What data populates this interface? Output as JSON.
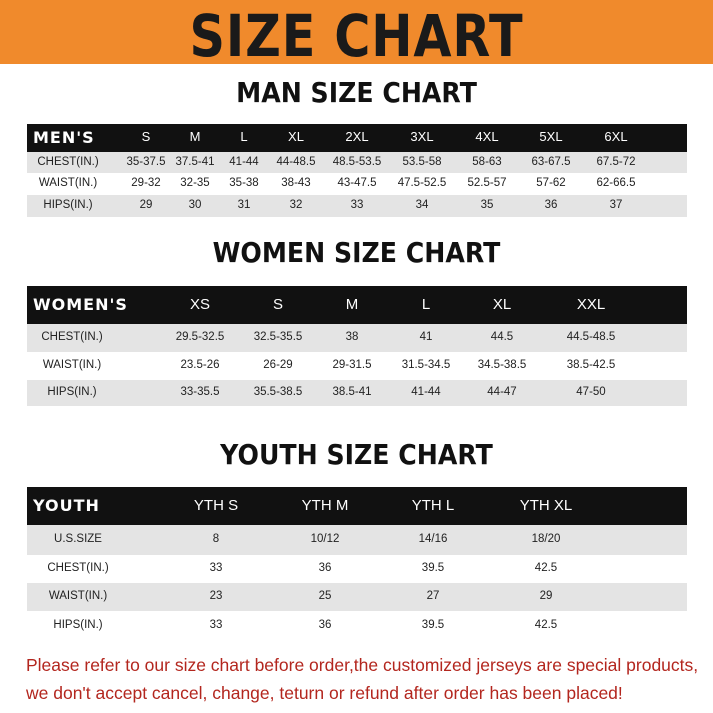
{
  "header": {
    "title": "SIZE CHART"
  },
  "tables": [
    {
      "title": "MAN SIZE CHART",
      "columns": [
        "MEN'S",
        "S",
        "M",
        "L",
        "XL",
        "2XL",
        "3XL",
        "4XL",
        "5XL",
        "6XL"
      ],
      "rows": [
        [
          "CHEST(IN.)",
          "35-37.5",
          "37.5-41",
          "41-44",
          "44-48.5",
          "48.5-53.5",
          "53.5-58",
          "58-63",
          "63-67.5",
          "67.5-72"
        ],
        [
          "WAIST(IN.)",
          "29-32",
          "32-35",
          "35-38",
          "38-43",
          "43-47.5",
          "47.5-52.5",
          "52.5-57",
          "57-62",
          "62-66.5"
        ],
        [
          "HIPS(IN.)",
          "29",
          "30",
          "31",
          "32",
          "33",
          "34",
          "35",
          "36",
          "37"
        ]
      ]
    },
    {
      "title": "WOMEN SIZE CHART",
      "columns": [
        "WOMEN'S",
        "XS",
        "S",
        "M",
        "L",
        "XL",
        "XXL"
      ],
      "rows": [
        [
          "CHEST(IN.)",
          "29.5-32.5",
          "32.5-35.5",
          "38",
          "41",
          "44.5",
          "44.5-48.5"
        ],
        [
          "WAIST(IN.)",
          "23.5-26",
          "26-29",
          "29-31.5",
          "31.5-34.5",
          "34.5-38.5",
          "38.5-42.5"
        ],
        [
          "HIPS(IN.)",
          "33-35.5",
          "35.5-38.5",
          "38.5-41",
          "41-44",
          "44-47",
          "47-50"
        ]
      ]
    },
    {
      "title": "YOUTH SIZE CHART",
      "columns": [
        "YOUTH",
        "YTH S",
        "YTH M",
        "YTH L",
        "YTH XL"
      ],
      "rows": [
        [
          "U.S.SIZE",
          "8",
          "10/12",
          "14/16",
          "18/20"
        ],
        [
          "CHEST(IN.)",
          "33",
          "36",
          "39.5",
          "42.5"
        ],
        [
          "WAIST(IN.)",
          "23",
          "25",
          "27",
          "29"
        ],
        [
          "HIPS(IN.)",
          "33",
          "36",
          "39.5",
          "42.5"
        ]
      ]
    }
  ],
  "notes": [
    "Please refer to our size chart before order,the customized jerseys are special products,",
    "we don't accept cancel, change, teturn or refund after order has been placed!"
  ]
}
